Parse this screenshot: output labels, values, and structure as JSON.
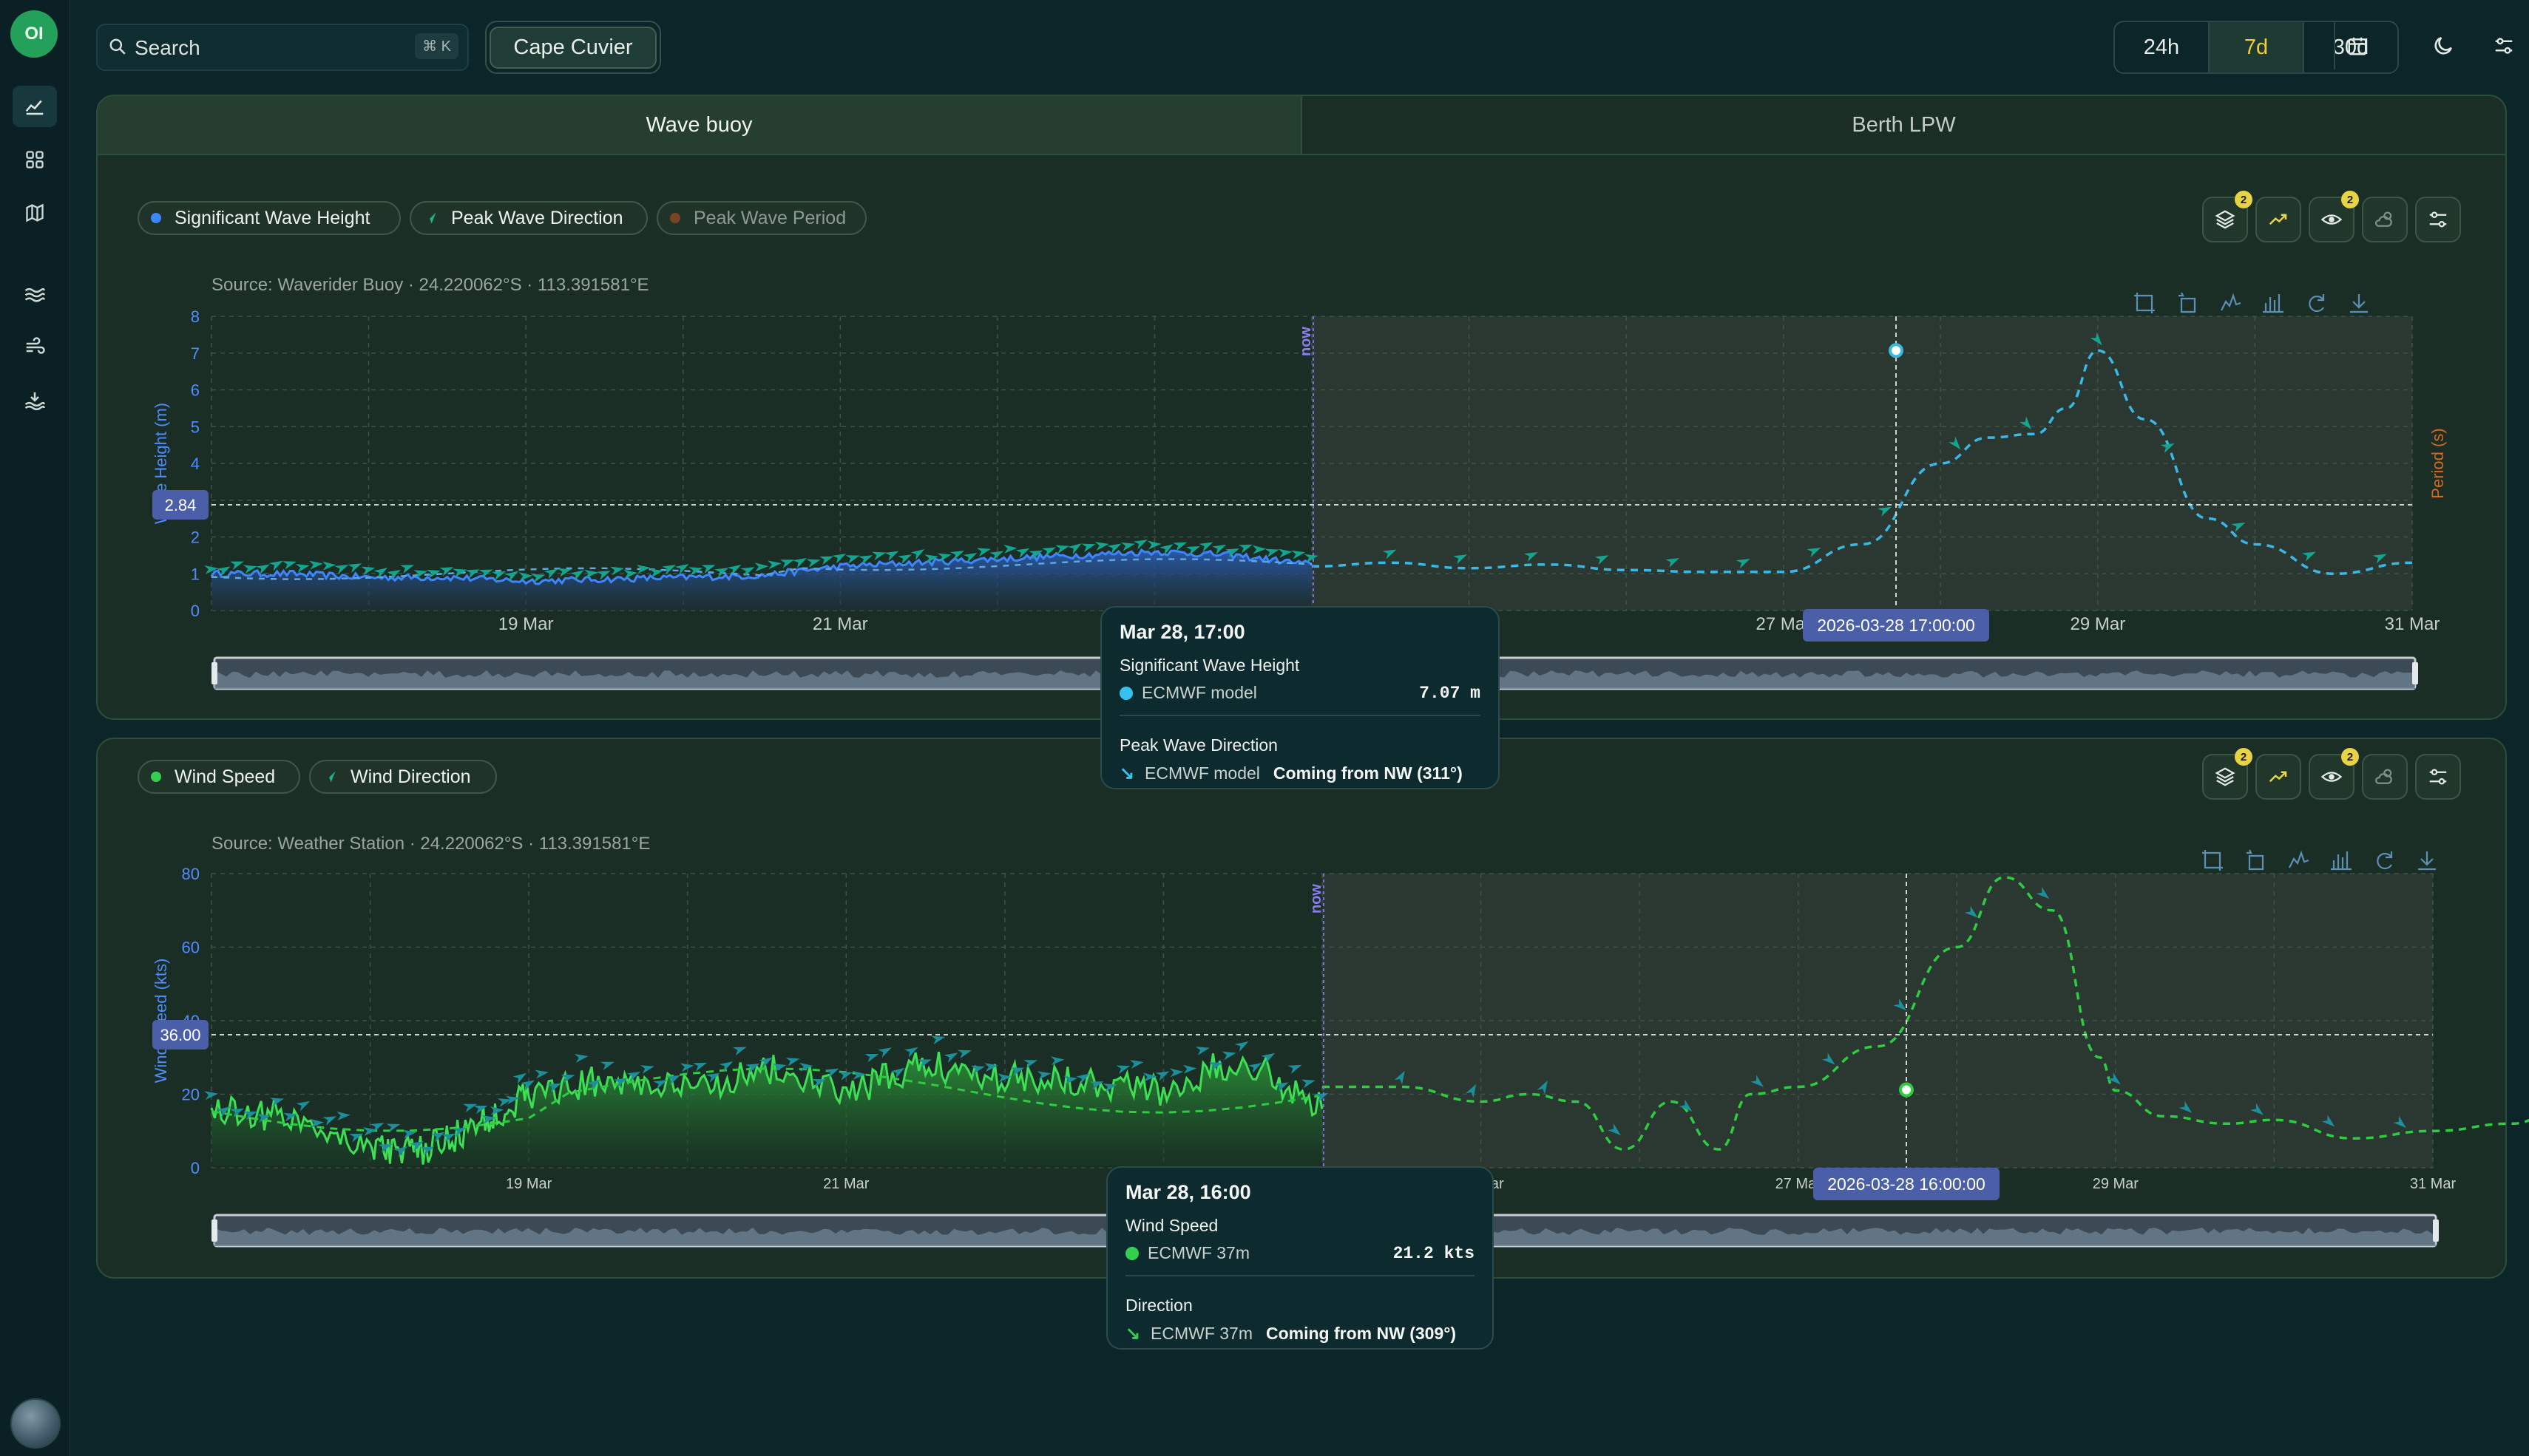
{
  "app": {
    "logo_text": "OI"
  },
  "sidebar": {
    "items": [
      "dashboard-icon",
      "widgets-icon",
      "map-icon",
      "waves-icon",
      "wind-icon",
      "tide-icon"
    ],
    "active": 0
  },
  "search": {
    "placeholder": "Search",
    "shortcut": "⌘ K"
  },
  "location": {
    "label": "Cape Cuvier"
  },
  "time_range": {
    "options": [
      "24h",
      "7d",
      "30d"
    ],
    "selected": "7d"
  },
  "tabs": [
    {
      "label": "Wave buoy",
      "active": true
    },
    {
      "label": "Berth LPW",
      "active": false
    }
  ],
  "wave_panel": {
    "legend": [
      {
        "label": "Significant Wave Height",
        "color": "#3d86ff",
        "active": true
      },
      {
        "label": "Peak Wave Direction",
        "color": "#1fb28a",
        "active": true
      },
      {
        "label": "Peak Wave Period",
        "color": "#c0642a",
        "active": false
      }
    ],
    "badges": {
      "layers": "2",
      "visibility": "2"
    },
    "source": "Source: Waverider Buoy · 24.220062°S · 113.391581°E",
    "crosshair_value": "2.84",
    "crosshair_date": "2026-03-28 17:00:00",
    "now_label": "now"
  },
  "wind_panel": {
    "legend": [
      {
        "label": "Wind Speed",
        "color": "#33d04f",
        "active": true
      },
      {
        "label": "Wind Direction",
        "color": "#1fb28a",
        "active": true
      }
    ],
    "badges": {
      "layers": "2",
      "visibility": "2"
    },
    "source": "Source: Weather Station · 24.220062°S · 113.391581°E",
    "crosshair_value": "36.00",
    "crosshair_date": "2026-03-28 16:00:00",
    "now_label": "now"
  },
  "chart_data": [
    {
      "type": "line",
      "ylabel": "Wave Height (m)",
      "ylabel_right": "Period (s)",
      "ylim": [
        0,
        8
      ],
      "y_ticks": [
        "0",
        "1",
        "2",
        "3",
        "4",
        "5",
        "6",
        "7",
        "8"
      ],
      "x_ticks": [
        "19 Mar",
        "21 Mar",
        "23 Mar",
        "25 Mar",
        "27 Mar",
        "29 Mar",
        "31 Mar"
      ],
      "x_range_days": [
        17.0,
        31.0
      ],
      "now_day": 24.0,
      "series": [
        {
          "name": "Significant Wave Height",
          "kind": "observed",
          "x": [
            17.0,
            17.5,
            18.0,
            18.5,
            19.0,
            19.5,
            20.0,
            20.5,
            21.0,
            21.5,
            22.0,
            22.5,
            23.0,
            23.5,
            24.0
          ],
          "y": [
            1.0,
            1.0,
            0.9,
            0.9,
            0.8,
            0.85,
            0.9,
            0.95,
            1.2,
            1.3,
            1.4,
            1.5,
            1.6,
            1.5,
            1.25
          ]
        },
        {
          "name": "ECMWF model",
          "kind": "forecast",
          "x": [
            24.0,
            24.5,
            25.0,
            25.5,
            26.0,
            26.5,
            27.0,
            27.5,
            28.0,
            28.3,
            28.6,
            28.8,
            29.0,
            29.3,
            29.7,
            30.0,
            30.5,
            31.0
          ],
          "y": [
            1.2,
            1.3,
            1.15,
            1.25,
            1.1,
            1.05,
            1.05,
            1.8,
            4.0,
            4.7,
            4.8,
            5.5,
            7.07,
            5.2,
            2.5,
            1.8,
            1.0,
            1.3
          ]
        }
      ]
    },
    {
      "type": "line",
      "ylabel": "Wind Speed (kts)",
      "ylim": [
        0,
        80
      ],
      "y_ticks": [
        "0",
        "20",
        "40",
        "60",
        "80"
      ],
      "x_ticks": [
        "19 Mar",
        "21 Mar",
        "23 Mar",
        "25 Mar",
        "27 Mar",
        "29 Mar",
        "31 Mar"
      ],
      "x_range_days": [
        17.0,
        31.0
      ],
      "now_day": 24.0,
      "series": [
        {
          "name": "Wind Speed",
          "kind": "observed",
          "x": [
            17.0,
            17.5,
            18.0,
            18.3,
            18.7,
            19.0,
            19.5,
            20.0,
            20.5,
            21.0,
            21.5,
            22.0,
            22.5,
            23.0,
            23.5,
            24.0
          ],
          "y": [
            16,
            14,
            6,
            4,
            12,
            20,
            24,
            21,
            27,
            20,
            28,
            25,
            24,
            21,
            30,
            16
          ]
        },
        {
          "name": "ECMWF 37m",
          "kind": "forecast",
          "x": [
            24.0,
            24.5,
            25.0,
            25.3,
            25.6,
            25.9,
            26.2,
            26.5,
            26.7,
            27.0,
            27.5,
            28.0,
            28.3,
            28.6,
            28.9,
            29.0,
            29.3,
            29.7,
            30.0,
            30.5,
            31.0,
            31.5,
            31.8
          ],
          "y": [
            22,
            22,
            18,
            20,
            18,
            5,
            18,
            5,
            20,
            22,
            33,
            60,
            79,
            70,
            30,
            21,
            14,
            12,
            13,
            8,
            10,
            12,
            16
          ]
        }
      ]
    }
  ],
  "tooltip_wave": {
    "title": "Mar 28, 17:00",
    "section1": "Significant Wave Height",
    "row1_label": "ECMWF model",
    "row1_value": "7.07 m",
    "section2": "Peak Wave Direction",
    "row2_label": "ECMWF model",
    "row2_value": "Coming from NW (311°)",
    "dot_color": "#34c3f0",
    "arrow_color": "#34c3f0"
  },
  "tooltip_wind": {
    "title": "Mar 28, 16:00",
    "section1": "Wind Speed",
    "row1_label": "ECMWF 37m",
    "row1_value": "21.2 kts",
    "section2": "Direction",
    "row2_label": "ECMWF 37m",
    "row2_value": "Coming from NW (309°)",
    "dot_color": "#33d04f",
    "arrow_color": "#33d04f"
  }
}
